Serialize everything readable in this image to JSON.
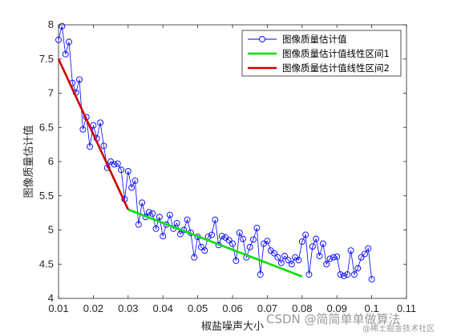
{
  "chart_data": {
    "type": "line",
    "title": "",
    "xlabel": "椒盐噪声大小",
    "ylabel": "图像质量估计值",
    "xlim": [
      0.01,
      0.11
    ],
    "ylim": [
      4,
      8
    ],
    "xticks": [
      "0.01",
      "0.02",
      "0.03",
      "0.04",
      "0.05",
      "0.06",
      "0.07",
      "0.08",
      "0.09",
      "0.1",
      "0.11"
    ],
    "yticks": [
      "4",
      "4.5",
      "5",
      "5.5",
      "6",
      "6.5",
      "7",
      "7.5",
      "8"
    ],
    "legend_position": "top-right",
    "series": [
      {
        "name": "图像质量估计值",
        "color": "#0000ff",
        "marker": "circle",
        "x": [
          0.01,
          0.011,
          0.012,
          0.013,
          0.014,
          0.015,
          0.016,
          0.017,
          0.018,
          0.019,
          0.02,
          0.021,
          0.022,
          0.023,
          0.024,
          0.025,
          0.026,
          0.027,
          0.028,
          0.029,
          0.03,
          0.031,
          0.032,
          0.033,
          0.034,
          0.035,
          0.036,
          0.037,
          0.038,
          0.039,
          0.04,
          0.041,
          0.042,
          0.043,
          0.044,
          0.045,
          0.046,
          0.047,
          0.048,
          0.049,
          0.05,
          0.051,
          0.052,
          0.053,
          0.054,
          0.055,
          0.056,
          0.057,
          0.058,
          0.059,
          0.06,
          0.061,
          0.062,
          0.063,
          0.064,
          0.065,
          0.066,
          0.067,
          0.068,
          0.069,
          0.07,
          0.071,
          0.072,
          0.073,
          0.074,
          0.075,
          0.076,
          0.077,
          0.078,
          0.079,
          0.08,
          0.081,
          0.082,
          0.083,
          0.084,
          0.085,
          0.086,
          0.087,
          0.088,
          0.089,
          0.09,
          0.091,
          0.092,
          0.093,
          0.094,
          0.095,
          0.096,
          0.097,
          0.098,
          0.099,
          0.1
        ],
        "values": [
          7.78,
          7.98,
          7.57,
          7.75,
          7.15,
          7.01,
          7.2,
          6.47,
          6.65,
          6.22,
          6.53,
          6.34,
          6.57,
          6.23,
          5.91,
          6.0,
          5.96,
          5.97,
          5.88,
          5.45,
          5.86,
          5.62,
          5.72,
          5.08,
          5.4,
          5.19,
          5.26,
          5.24,
          5.02,
          5.19,
          4.91,
          5.08,
          5.22,
          5.02,
          5.1,
          4.94,
          5.0,
          5.15,
          4.96,
          4.6,
          4.9,
          4.75,
          4.7,
          4.9,
          4.93,
          5.15,
          4.78,
          4.91,
          4.89,
          4.85,
          4.8,
          4.55,
          4.96,
          4.87,
          4.6,
          4.75,
          4.86,
          5.03,
          4.35,
          4.8,
          4.84,
          4.7,
          4.66,
          4.6,
          4.52,
          4.62,
          4.56,
          4.5,
          4.6,
          4.56,
          4.83,
          4.93,
          4.35,
          4.76,
          4.87,
          4.62,
          4.8,
          4.5,
          4.58,
          4.6,
          4.61,
          4.35,
          4.33,
          4.35,
          4.7,
          4.35,
          4.44,
          4.6,
          4.65,
          4.73,
          4.28
        ]
      },
      {
        "name": "图像质量估计值线性区间1",
        "color": "#00e000",
        "x": [
          0.03,
          0.08
        ],
        "values": [
          5.3,
          4.32
        ]
      },
      {
        "name": "图像质量估计值线性区间2",
        "color": "#cc0000",
        "x": [
          0.01,
          0.03
        ],
        "values": [
          7.5,
          5.3
        ]
      }
    ]
  },
  "watermarks": [
    {
      "text": "CSDN @简简单单做算法"
    },
    {
      "text": "@稀土掘金技术社区"
    }
  ]
}
